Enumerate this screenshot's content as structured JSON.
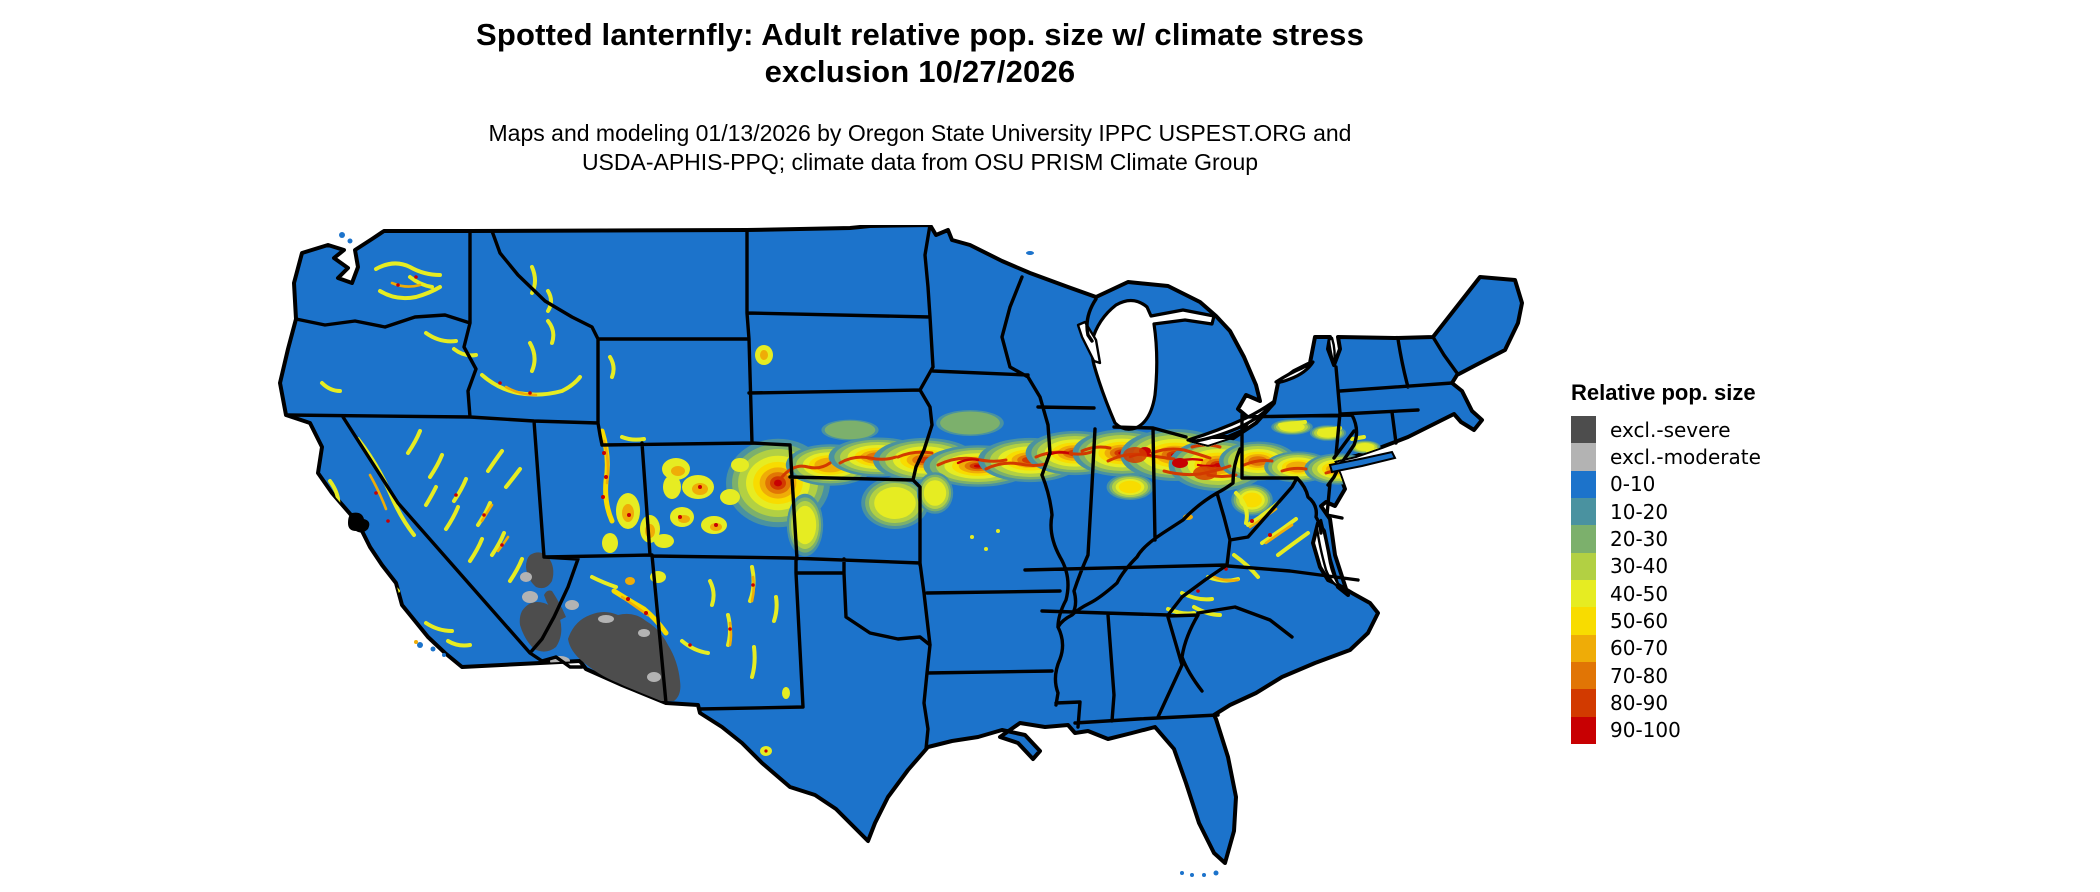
{
  "title": {
    "line1": "Spotted lanternfly: Adult relative pop. size w/ climate stress",
    "line2": "exclusion 10/27/2026"
  },
  "subtitle": {
    "line1": "Maps and modeling 01/13/2026 by Oregon State University IPPC USPEST.ORG and",
    "line2": "USDA-APHIS-PPQ; climate data from OSU PRISM Climate Group"
  },
  "legend": {
    "title": "Relative pop. size",
    "items": [
      {
        "label": "excl.-severe",
        "color": "#4D4D4D"
      },
      {
        "label": "excl.-moderate",
        "color": "#B3B3B3"
      },
      {
        "label": "0-10",
        "color": "#1C73CB"
      },
      {
        "label": "10-20",
        "color": "#4A92A0"
      },
      {
        "label": "20-30",
        "color": "#7CB06C"
      },
      {
        "label": "30-40",
        "color": "#B2D043"
      },
      {
        "label": "40-50",
        "color": "#E6EC22"
      },
      {
        "label": "50-60",
        "color": "#F8DC00"
      },
      {
        "label": "60-70",
        "color": "#EFAC07"
      },
      {
        "label": "70-80",
        "color": "#E17505"
      },
      {
        "label": "80-90",
        "color": "#D23A00"
      },
      {
        "label": "90-100",
        "color": "#C80002"
      }
    ]
  },
  "map": {
    "region": "Contiguous United States",
    "background_color": "#FFFFFF",
    "state_border_color": "#000000",
    "default_bin": "0-10"
  }
}
